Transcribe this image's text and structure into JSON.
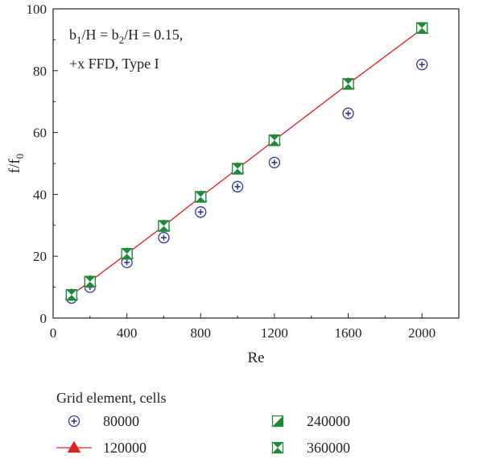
{
  "chart_data": {
    "type": "scatter",
    "xlabel": "Re",
    "ylabel": "f/f",
    "ylabel_sub": "0",
    "xlim": [
      0,
      2200
    ],
    "ylim": [
      0,
      100
    ],
    "xticks": [
      0,
      400,
      800,
      1200,
      1600,
      2000
    ],
    "yticks": [
      0,
      20,
      40,
      60,
      80,
      100
    ],
    "grid": false,
    "annotation": {
      "line1": {
        "p1": "b",
        "s1": "1",
        "p2": "/H = b",
        "s2": "2",
        "p3": "/H = 0.15,"
      },
      "line2": "+x FFD, Type I"
    },
    "legend_title": "Grid element, cells",
    "legend_position": "bottom",
    "x": [
      100,
      200,
      400,
      600,
      800,
      1000,
      1200,
      1600,
      2000
    ],
    "series": [
      {
        "name": "80000",
        "marker": "circle-plus",
        "color": "#2b3a9c",
        "values": [
          6.5,
          10,
          18,
          26,
          34.3,
          42.5,
          50.3,
          66.2,
          82
        ]
      },
      {
        "name": "120000",
        "marker": "triangle-line",
        "color": "#e02020",
        "values": [
          7.5,
          11.8,
          20.8,
          29.8,
          39.2,
          48.3,
          57.5,
          75.7,
          93.5
        ]
      },
      {
        "name": "240000",
        "marker": "square-half",
        "color": "#1e8a3a",
        "values": [
          7.5,
          11.8,
          20.8,
          29.8,
          39.2,
          48.3,
          57.5,
          75.7,
          93.8
        ]
      },
      {
        "name": "360000",
        "marker": "square-bowtie",
        "color": "#1e8a3a",
        "values": [
          7.5,
          11.8,
          20.8,
          29.8,
          39.2,
          48.3,
          57.5,
          75.7,
          93.8
        ]
      }
    ]
  }
}
